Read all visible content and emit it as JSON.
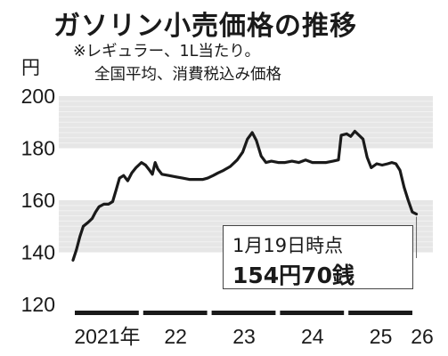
{
  "title": "ガソリン小売価格の推移",
  "notes": [
    "※レギュラー、1L当たり。",
    "全国平均、消費税込み価格"
  ],
  "unit": "円",
  "callout": {
    "date": "1月19日時点",
    "price": "154円70銭"
  },
  "colors": {
    "line": "#1a1a1a",
    "band": "#e6e6e6",
    "gridline": "#f2f2f2"
  },
  "chart_data": {
    "type": "line",
    "title": "ガソリン小売価格の推移",
    "ylabel": "円",
    "ylim": [
      120,
      200
    ],
    "yticks": [
      120,
      140,
      160,
      180,
      200
    ],
    "x_tick_labels": [
      "2021年",
      "22",
      "23",
      "24",
      "25",
      "26"
    ],
    "x_range": [
      2021.0,
      2026.0
    ],
    "series": [
      {
        "values": [
          [
            2021.0,
            137.0
          ],
          [
            2021.05,
            141.0
          ],
          [
            2021.1,
            146.0
          ],
          [
            2021.15,
            150.0
          ],
          [
            2021.22,
            151.5
          ],
          [
            2021.28,
            153.0
          ],
          [
            2021.33,
            155.5
          ],
          [
            2021.38,
            157.5
          ],
          [
            2021.45,
            158.5
          ],
          [
            2021.52,
            158.5
          ],
          [
            2021.58,
            159.5
          ],
          [
            2021.63,
            164.0
          ],
          [
            2021.68,
            168.5
          ],
          [
            2021.74,
            169.5
          ],
          [
            2021.8,
            167.5
          ],
          [
            2021.86,
            170.5
          ],
          [
            2021.92,
            172.5
          ],
          [
            2022.0,
            174.5
          ],
          [
            2022.06,
            173.5
          ],
          [
            2022.12,
            171.5
          ],
          [
            2022.16,
            170.0
          ],
          [
            2022.2,
            174.5
          ],
          [
            2022.24,
            172.0
          ],
          [
            2022.3,
            170.0
          ],
          [
            2022.4,
            169.5
          ],
          [
            2022.5,
            169.0
          ],
          [
            2022.6,
            168.5
          ],
          [
            2022.7,
            168.0
          ],
          [
            2022.8,
            168.0
          ],
          [
            2022.9,
            168.0
          ],
          [
            2022.97,
            168.5
          ],
          [
            2023.05,
            169.5
          ],
          [
            2023.12,
            170.5
          ],
          [
            2023.2,
            171.5
          ],
          [
            2023.3,
            173.0
          ],
          [
            2023.4,
            175.5
          ],
          [
            2023.48,
            178.5
          ],
          [
            2023.55,
            183.5
          ],
          [
            2023.62,
            186.0
          ],
          [
            2023.68,
            183.0
          ],
          [
            2023.75,
            177.0
          ],
          [
            2023.82,
            174.5
          ],
          [
            2023.9,
            175.0
          ],
          [
            2024.0,
            174.5
          ],
          [
            2024.1,
            174.5
          ],
          [
            2024.2,
            175.0
          ],
          [
            2024.3,
            174.5
          ],
          [
            2024.4,
            175.5
          ],
          [
            2024.5,
            174.5
          ],
          [
            2024.6,
            174.5
          ],
          [
            2024.7,
            174.5
          ],
          [
            2024.8,
            175.0
          ],
          [
            2024.88,
            175.5
          ],
          [
            2024.92,
            185.0
          ],
          [
            2025.0,
            185.5
          ],
          [
            2025.06,
            184.5
          ],
          [
            2025.12,
            186.5
          ],
          [
            2025.18,
            185.0
          ],
          [
            2025.24,
            183.5
          ],
          [
            2025.3,
            176.5
          ],
          [
            2025.36,
            172.5
          ],
          [
            2025.44,
            174.0
          ],
          [
            2025.52,
            173.5
          ],
          [
            2025.6,
            174.0
          ],
          [
            2025.66,
            174.5
          ],
          [
            2025.72,
            174.0
          ],
          [
            2025.78,
            171.5
          ],
          [
            2025.84,
            165.0
          ],
          [
            2025.9,
            160.0
          ],
          [
            2025.96,
            155.5
          ],
          [
            2026.02,
            154.7
          ]
        ]
      }
    ],
    "grid": false,
    "bands": [
      [
        140,
        160
      ],
      [
        180,
        200
      ]
    ]
  }
}
